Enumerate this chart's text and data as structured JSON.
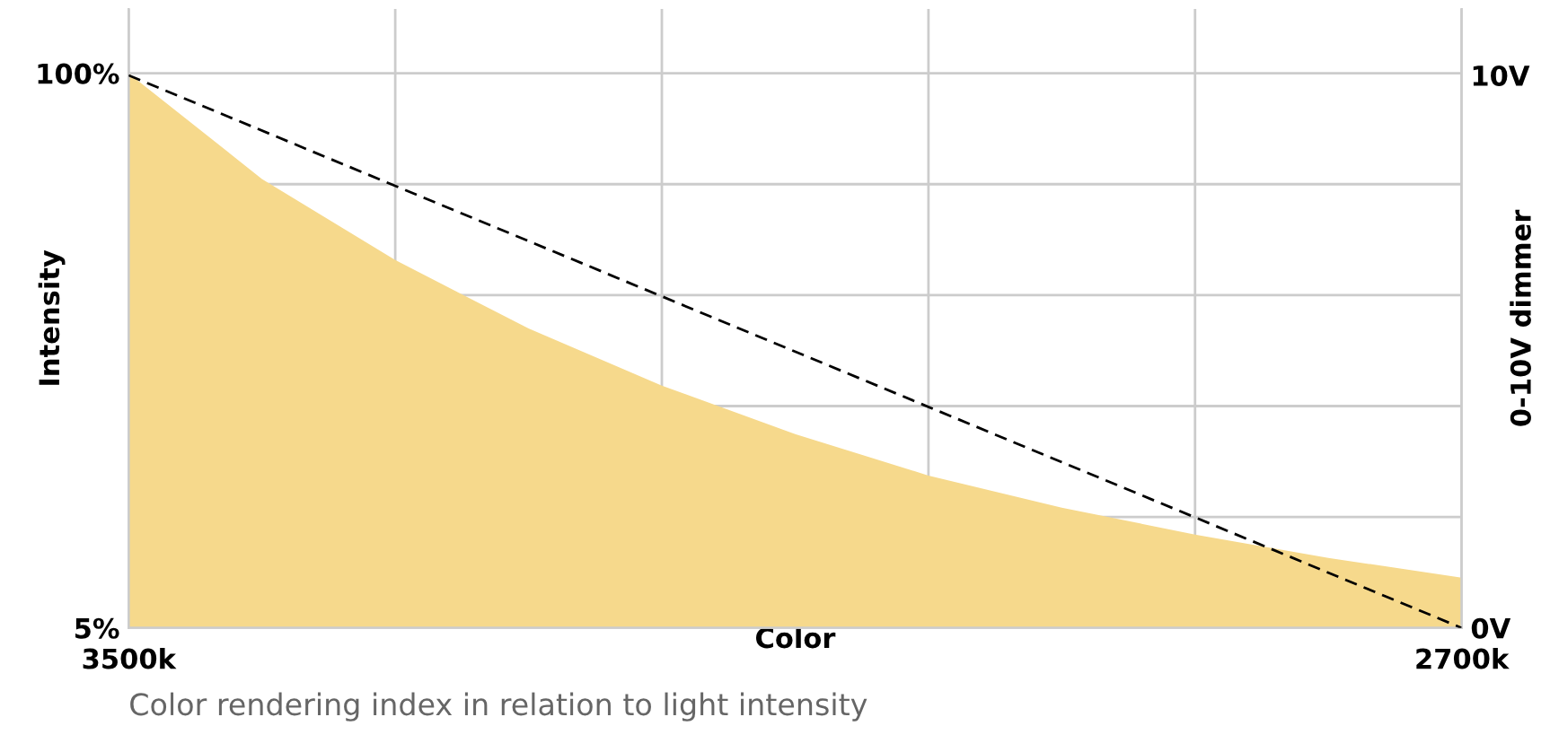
{
  "chart_data": {
    "type": "area",
    "x": [
      3500,
      3420,
      3340,
      3260,
      3180,
      3100,
      3020,
      2940,
      2860,
      2780,
      2700
    ],
    "series": [
      {
        "color": "#f6d98c",
        "values": [
          100,
          81.9,
          68.0,
          56.3,
          46.5,
          38.2,
          31.1,
          25.6,
          21.0,
          17.0,
          13.6
        ]
      },
      {
        "type": "line",
        "axis": "y2",
        "color": "#000000",
        "line_style": "dashed",
        "x": [
          3500,
          2700
        ],
        "values": [
          10,
          0
        ]
      }
    ],
    "xlim": [
      3500,
      2700
    ],
    "xticks": [
      {
        "value": 3500,
        "label": "3500k"
      },
      {
        "value": 3340,
        "label": null
      },
      {
        "value": 3180,
        "label": null
      },
      {
        "value": 3020,
        "label": null
      },
      {
        "value": 2860,
        "label": null
      },
      {
        "value": 2700,
        "label": "2700k"
      }
    ],
    "ylim": [
      5,
      111
    ],
    "yticks": [
      {
        "value": 5,
        "label": "5%"
      },
      {
        "value": 24,
        "label": null
      },
      {
        "value": 43,
        "label": null
      },
      {
        "value": 62,
        "label": null
      },
      {
        "value": 81,
        "label": null
      },
      {
        "value": 100,
        "label": "100%"
      }
    ],
    "y2lim": [
      0,
      11.2
    ],
    "y2ticks": [
      {
        "value": 0,
        "label": "0V"
      },
      {
        "value": 10,
        "label": "10V"
      }
    ],
    "xlabel": "Color",
    "ylabel": "Intensity",
    "y2label": "0-10V dimmer",
    "grid": true,
    "annotations": [
      "Color rendering index in relation to light intensity"
    ]
  }
}
